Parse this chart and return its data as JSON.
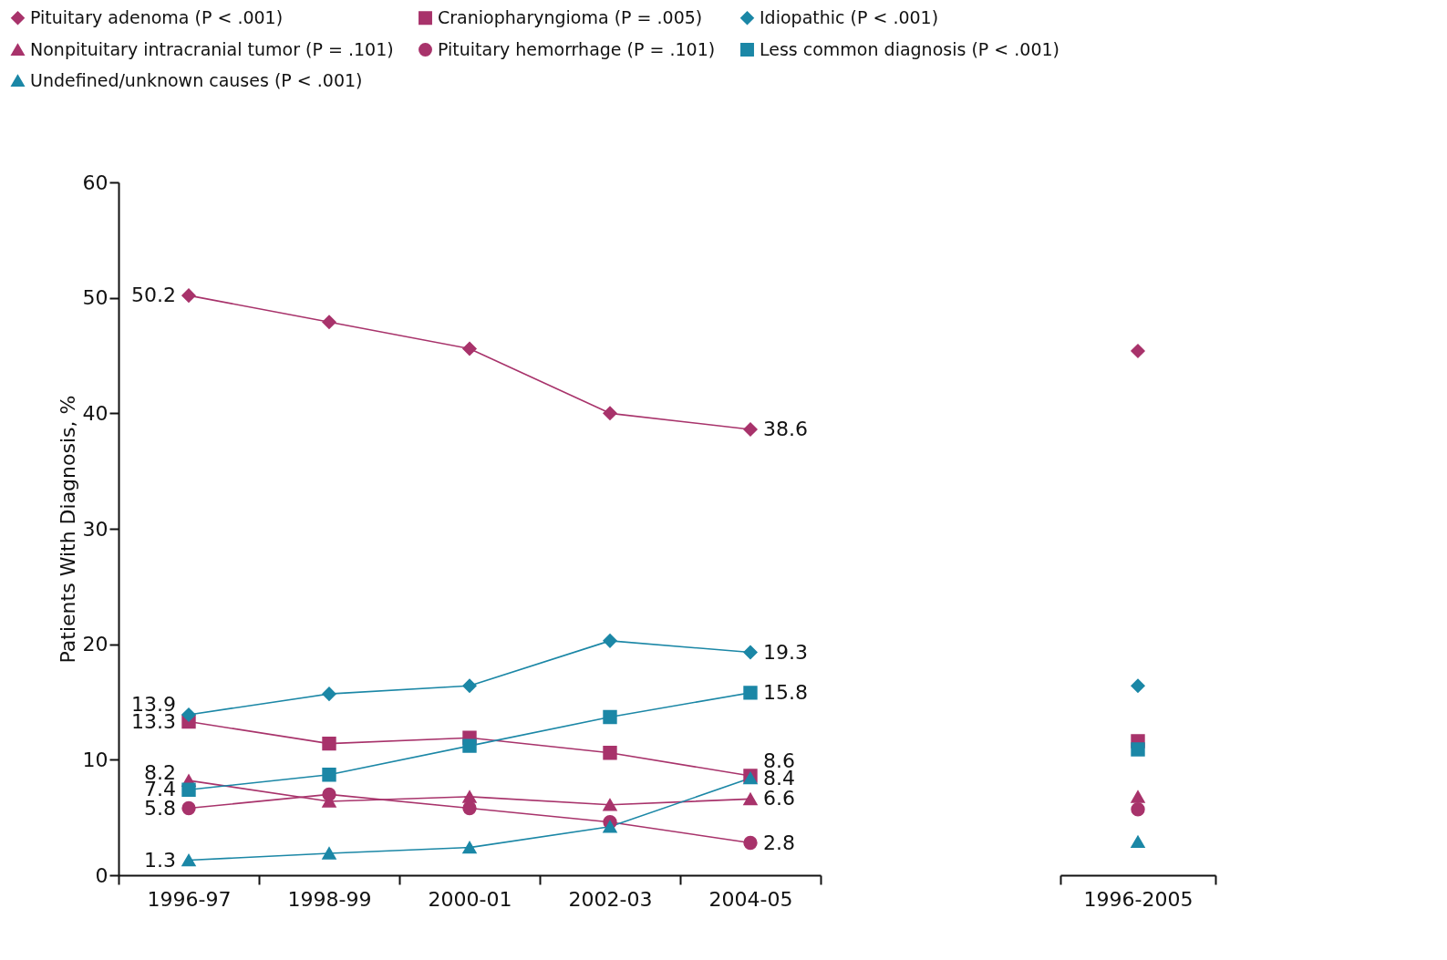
{
  "chart_data": [
    {
      "type": "line",
      "ylabel": "Patients With Diagnosis, %",
      "categories": [
        "1996-97",
        "1998-99",
        "2000-01",
        "2002-03",
        "2004-05"
      ],
      "ylim": [
        0,
        60
      ],
      "yticks": [
        0,
        10,
        20,
        30,
        40,
        50,
        60
      ],
      "grid": false,
      "legend": "top",
      "series": [
        {
          "name": "Pituitary adenoma (P < .001)",
          "color": "#a8336b",
          "marker": "diamond",
          "values": [
            50.2,
            47.9,
            45.6,
            40.0,
            38.6
          ],
          "value_labels": [
            "50.2",
            null,
            null,
            null,
            "38.6"
          ]
        },
        {
          "name": "Craniopharyngioma (P = .005)",
          "color": "#a8336b",
          "marker": "square",
          "values": [
            13.3,
            11.4,
            11.9,
            10.6,
            8.6
          ],
          "value_labels": [
            "13.3",
            null,
            null,
            null,
            "8.6"
          ]
        },
        {
          "name": "Idiopathic (P < .001)",
          "color": "#1b87a6",
          "marker": "diamond",
          "values": [
            13.9,
            15.7,
            16.4,
            20.3,
            19.3
          ],
          "value_labels": [
            "13.9",
            null,
            null,
            null,
            "19.3"
          ]
        },
        {
          "name": "Nonpituitary intracranial tumor (P = .101)",
          "color": "#a8336b",
          "marker": "triangle",
          "values": [
            8.2,
            6.4,
            6.8,
            6.1,
            6.6
          ],
          "value_labels": [
            "8.2",
            null,
            null,
            null,
            "6.6"
          ]
        },
        {
          "name": "Pituitary hemorrhage (P = .101)",
          "color": "#a8336b",
          "marker": "circle",
          "values": [
            5.8,
            7.0,
            5.8,
            4.6,
            2.8
          ],
          "value_labels": [
            "5.8",
            null,
            null,
            null,
            "2.8"
          ]
        },
        {
          "name": "Less common diagnosis (P < .001)",
          "color": "#1b87a6",
          "marker": "square",
          "values": [
            7.4,
            8.7,
            11.2,
            13.7,
            15.8
          ],
          "value_labels": [
            "7.4",
            null,
            null,
            null,
            "15.8"
          ]
        },
        {
          "name": "Undefined/unknown causes (P < .001)",
          "color": "#1b87a6",
          "marker": "triangle",
          "values": [
            1.3,
            1.9,
            2.4,
            4.2,
            8.4
          ],
          "value_labels": [
            "1.3",
            null,
            null,
            null,
            "8.4"
          ]
        }
      ]
    },
    {
      "type": "scatter",
      "categories": [
        "1996-2005"
      ],
      "ylim": [
        0,
        60
      ],
      "tick_labels": "x",
      "series": [
        {
          "color": "#a8336b",
          "marker": "diamond",
          "values": [
            45.4
          ]
        },
        {
          "color": "#a8336b",
          "marker": "square",
          "values": [
            11.6
          ]
        },
        {
          "color": "#1b87a6",
          "marker": "diamond",
          "values": [
            16.4
          ]
        },
        {
          "color": "#a8336b",
          "marker": "triangle",
          "values": [
            6.8
          ]
        },
        {
          "color": "#a8336b",
          "marker": "circle",
          "values": [
            5.7
          ]
        },
        {
          "color": "#1b87a6",
          "marker": "square",
          "values": [
            10.9
          ]
        },
        {
          "color": "#1b87a6",
          "marker": "triangle",
          "values": [
            2.9
          ]
        }
      ]
    }
  ]
}
